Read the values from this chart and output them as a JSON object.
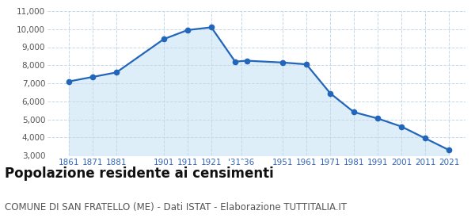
{
  "years": [
    1861,
    1871,
    1881,
    1901,
    1911,
    1921,
    1931,
    1936,
    1951,
    1961,
    1971,
    1981,
    1991,
    2001,
    2011,
    2021
  ],
  "values": [
    7100,
    7350,
    7600,
    9450,
    9950,
    10100,
    8200,
    8250,
    8150,
    8050,
    6450,
    5400,
    5050,
    4600,
    3950,
    3300
  ],
  "ylim": [
    3000,
    11000
  ],
  "yticks": [
    3000,
    4000,
    5000,
    6000,
    7000,
    8000,
    9000,
    10000,
    11000
  ],
  "xlim_left": 1852,
  "xlim_right": 2028,
  "line_color": "#2266bb",
  "fill_color": "#ddeef8",
  "marker_color": "#2266bb",
  "grid_color": "#c5d8ea",
  "background_color": "#ffffff",
  "title": "Popolazione residente ai censimenti",
  "subtitle": "COMUNE DI SAN FRATELLO (ME) - Dati ISTAT - Elaborazione TUTTITALIA.IT",
  "title_fontsize": 12,
  "subtitle_fontsize": 8.5,
  "tick_color": "#3366bb",
  "ytick_color": "#555555"
}
